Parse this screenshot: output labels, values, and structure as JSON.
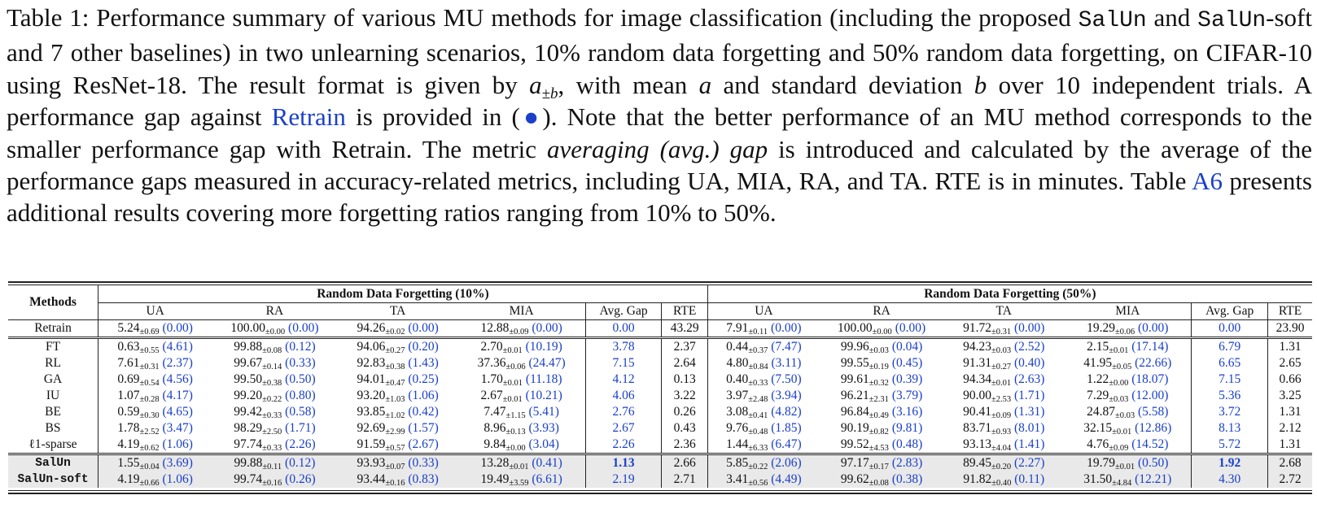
{
  "caption": {
    "p1": "Table 1: Performance summary of various MU methods for image classification (including the proposed ",
    "salun1": "SalUn",
    "p2": " and ",
    "salun2": "SalUn",
    "p3": "-soft and 7 other baselines) in two unlearning scenarios, 10% random data forgetting and 50% random data forgetting, on CIFAR-10 using ResNet-18. The result format is given by ",
    "fmt_a": "a",
    "fmt_sub": "±b",
    "p4": ", with mean ",
    "mean_sym": "a",
    "p5": " and standard deviation ",
    "std_sym": "b",
    "p6": " over 10 independent trials. A performance gap against ",
    "retrain_link": "Retrain",
    "p7": " is provided in (",
    "dot": "●",
    "p8": "). Note that the better performance of an MU method corresponds to the smaller performance gap with Retrain. The metric ",
    "avg_gap_italic": "averaging (avg.) gap",
    "p9": " is introduced and calculated by the average of the performance gaps measured in accuracy-related metrics, including UA, MIA, RA, and TA. RTE is in minutes. Table ",
    "a6_link": "A6",
    "p10": " presents additional results covering more forgetting ratios ranging from 10% to 50%."
  },
  "table": {
    "methods_header": "Methods",
    "group_10": "Random Data Forgetting (10%)",
    "group_50": "Random Data Forgetting (50%)",
    "columns": [
      "UA",
      "RA",
      "TA",
      "MIA",
      "Avg. Gap",
      "RTE"
    ],
    "rows": [
      {
        "name": "Retrain",
        "style": "retrain",
        "c10": [
          [
            "5.24",
            "±0.69",
            "(0.00)"
          ],
          [
            "100.00",
            "±0.00",
            "(0.00)"
          ],
          [
            "94.26",
            "±0.02",
            "(0.00)"
          ],
          [
            "12.88",
            "±0.09",
            "(0.00)"
          ]
        ],
        "gap10": "0.00",
        "rte10": "43.29",
        "c50": [
          [
            "7.91",
            "±0.11",
            "(0.00)"
          ],
          [
            "100.00",
            "±0.00",
            "(0.00)"
          ],
          [
            "91.72",
            "±0.31",
            "(0.00)"
          ],
          [
            "19.29",
            "±0.06",
            "(0.00)"
          ]
        ],
        "gap50": "0.00",
        "rte50": "23.90"
      },
      {
        "name": "FT",
        "style": "first",
        "c10": [
          [
            "0.63",
            "±0.55",
            "(4.61)"
          ],
          [
            "99.88",
            "±0.08",
            "(0.12)"
          ],
          [
            "94.06",
            "±0.27",
            "(0.20)"
          ],
          [
            "2.70",
            "±0.01",
            "(10.19)"
          ]
        ],
        "gap10": "3.78",
        "rte10": "2.37",
        "c50": [
          [
            "0.44",
            "±0.37",
            "(7.47)"
          ],
          [
            "99.96",
            "±0.03",
            "(0.04)"
          ],
          [
            "94.23",
            "±0.03",
            "(2.52)"
          ],
          [
            "2.15",
            "±0.01",
            "(17.14)"
          ]
        ],
        "gap50": "6.79",
        "rte50": "1.31"
      },
      {
        "name": "RL",
        "style": "",
        "c10": [
          [
            "7.61",
            "±0.31",
            "(2.37)"
          ],
          [
            "99.67",
            "±0.14",
            "(0.33)"
          ],
          [
            "92.83",
            "±0.38",
            "(1.43)"
          ],
          [
            "37.36",
            "±0.06",
            "(24.47)"
          ]
        ],
        "gap10": "7.15",
        "rte10": "2.64",
        "c50": [
          [
            "4.80",
            "±0.84",
            "(3.11)"
          ],
          [
            "99.55",
            "±0.19",
            "(0.45)"
          ],
          [
            "91.31",
            "±0.27",
            "(0.40)"
          ],
          [
            "41.95",
            "±0.05",
            "(22.66)"
          ]
        ],
        "gap50": "6.65",
        "rte50": "2.65"
      },
      {
        "name": "GA",
        "style": "",
        "c10": [
          [
            "0.69",
            "±0.54",
            "(4.56)"
          ],
          [
            "99.50",
            "±0.38",
            "(0.50)"
          ],
          [
            "94.01",
            "±0.47",
            "(0.25)"
          ],
          [
            "1.70",
            "±0.01",
            "(11.18)"
          ]
        ],
        "gap10": "4.12",
        "rte10": "0.13",
        "c50": [
          [
            "0.40",
            "±0.33",
            "(7.50)"
          ],
          [
            "99.61",
            "±0.32",
            "(0.39)"
          ],
          [
            "94.34",
            "±0.01",
            "(2.63)"
          ],
          [
            "1.22",
            "±0.00",
            "(18.07)"
          ]
        ],
        "gap50": "7.15",
        "rte50": "0.66"
      },
      {
        "name": "IU",
        "style": "",
        "c10": [
          [
            "1.07",
            "±0.28",
            "(4.17)"
          ],
          [
            "99.20",
            "±0.22",
            "(0.80)"
          ],
          [
            "93.20",
            "±1.03",
            "(1.06)"
          ],
          [
            "2.67",
            "±0.01",
            "(10.21)"
          ]
        ],
        "gap10": "4.06",
        "rte10": "3.22",
        "c50": [
          [
            "3.97",
            "±2.48",
            "(3.94)"
          ],
          [
            "96.21",
            "±2.31",
            "(3.79)"
          ],
          [
            "90.00",
            "±2.53",
            "(1.71)"
          ],
          [
            "7.29",
            "±0.03",
            "(12.00)"
          ]
        ],
        "gap50": "5.36",
        "rte50": "3.25"
      },
      {
        "name": "BE",
        "style": "",
        "c10": [
          [
            "0.59",
            "±0.30",
            "(4.65)"
          ],
          [
            "99.42",
            "±0.33",
            "(0.58)"
          ],
          [
            "93.85",
            "±1.02",
            "(0.42)"
          ],
          [
            "7.47",
            "±1.15",
            "(5.41)"
          ]
        ],
        "gap10": "2.76",
        "rte10": "0.26",
        "c50": [
          [
            "3.08",
            "±0.41",
            "(4.82)"
          ],
          [
            "96.84",
            "±0.49",
            "(3.16)"
          ],
          [
            "90.41",
            "±0.09",
            "(1.31)"
          ],
          [
            "24.87",
            "±0.03",
            "(5.58)"
          ]
        ],
        "gap50": "3.72",
        "rte50": "1.31"
      },
      {
        "name": "BS",
        "style": "",
        "c10": [
          [
            "1.78",
            "±2.52",
            "(3.47)"
          ],
          [
            "98.29",
            "±2.50",
            "(1.71)"
          ],
          [
            "92.69",
            "±2.99",
            "(1.57)"
          ],
          [
            "8.96",
            "±0.13",
            "(3.93)"
          ]
        ],
        "gap10": "2.67",
        "rte10": "0.43",
        "c50": [
          [
            "9.76",
            "±0.48",
            "(1.85)"
          ],
          [
            "90.19",
            "±0.82",
            "(9.81)"
          ],
          [
            "83.71",
            "±0.93",
            "(8.01)"
          ],
          [
            "32.15",
            "±0.01",
            "(12.86)"
          ]
        ],
        "gap50": "8.13",
        "rte50": "2.12"
      },
      {
        "name": "ℓ1-sparse",
        "style": "",
        "c10": [
          [
            "4.19",
            "±0.62",
            "(1.06)"
          ],
          [
            "97.74",
            "±0.33",
            "(2.26)"
          ],
          [
            "91.59",
            "±0.57",
            "(2.67)"
          ],
          [
            "9.84",
            "±0.00",
            "(3.04)"
          ]
        ],
        "gap10": "2.26",
        "rte10": "2.36",
        "c50": [
          [
            "1.44",
            "±6.33",
            "(6.47)"
          ],
          [
            "99.52",
            "±4.53",
            "(0.48)"
          ],
          [
            "93.13",
            "±4.04",
            "(1.41)"
          ],
          [
            "4.76",
            "±0.09",
            "(14.52)"
          ]
        ],
        "gap50": "5.72",
        "rte50": "1.31"
      },
      {
        "name": "SalUn",
        "style": "shade-first",
        "bold_gap": true,
        "c10": [
          [
            "1.55",
            "±0.04",
            "(3.69)"
          ],
          [
            "99.88",
            "±0.11",
            "(0.12)"
          ],
          [
            "93.93",
            "±0.07",
            "(0.33)"
          ],
          [
            "13.28",
            "±0.01",
            "(0.41)"
          ]
        ],
        "gap10": "1.13",
        "rte10": "2.66",
        "c50": [
          [
            "5.85",
            "±0.22",
            "(2.06)"
          ],
          [
            "97.17",
            "±0.17",
            "(2.83)"
          ],
          [
            "89.45",
            "±0.20",
            "(2.27)"
          ],
          [
            "19.79",
            "±0.01",
            "(0.50)"
          ]
        ],
        "gap50": "1.92",
        "rte50": "2.68"
      },
      {
        "name": "SalUn-soft",
        "style": "shade",
        "c10": [
          [
            "4.19",
            "±0.66",
            "(1.06)"
          ],
          [
            "99.74",
            "±0.16",
            "(0.26)"
          ],
          [
            "93.44",
            "±0.16",
            "(0.83)"
          ],
          [
            "19.49",
            "±3.59",
            "(6.61)"
          ]
        ],
        "gap10": "2.19",
        "rte10": "2.71",
        "c50": [
          [
            "3.41",
            "±0.56",
            "(4.49)"
          ],
          [
            "99.62",
            "±0.08",
            "(0.38)"
          ],
          [
            "91.82",
            "±0.40",
            "(0.11)"
          ],
          [
            "31.50",
            "±4.84",
            "(12.21)"
          ]
        ],
        "gap50": "4.30",
        "rte50": "2.72"
      }
    ]
  }
}
